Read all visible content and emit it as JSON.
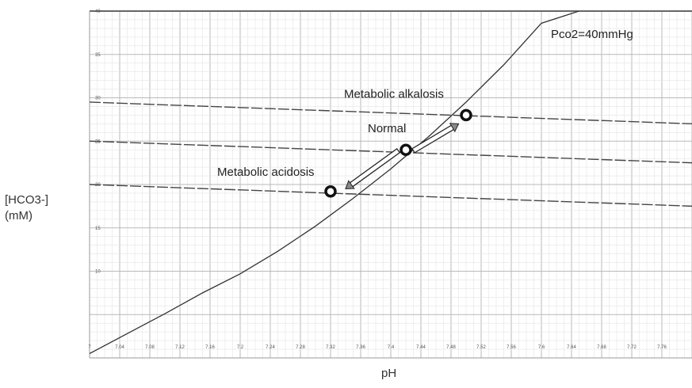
{
  "chart_data": {
    "type": "line",
    "title": "",
    "xlabel": "pH",
    "ylabel": "[HCO3-]",
    "ylabel_unit": "(mM)",
    "xlim": [
      7.0,
      7.8
    ],
    "ylim": [
      0,
      40
    ],
    "x_ticks": [
      7,
      7.04,
      7.08,
      7.12,
      7.16,
      7.2,
      7.24,
      7.28,
      7.32,
      7.36,
      7.4,
      7.44,
      7.48,
      7.52,
      7.56,
      7.6,
      7.64,
      7.68,
      7.72,
      7.76
    ],
    "x_tick_labels": [
      "7",
      "7.04",
      "7.08",
      "7.12",
      "7.16",
      "7.2",
      "7.24",
      "7.28",
      "7.32",
      "7.36",
      "7.4",
      "7.44",
      "7.48",
      "7.52",
      "7.56",
      "7.6",
      "7.64",
      "7.68",
      "7.72",
      "7.76"
    ],
    "y_ticks": [
      10,
      15,
      20,
      25,
      30,
      35,
      40
    ],
    "y_tick_labels": [
      "10",
      "15",
      "20",
      "25",
      "30",
      "35",
      "40"
    ],
    "grid": true,
    "curve": {
      "label": "Pco2=40mmHg",
      "x": [
        7.0,
        7.05,
        7.1,
        7.15,
        7.2,
        7.25,
        7.3,
        7.35,
        7.4,
        7.45,
        7.5,
        7.55,
        7.6,
        7.65
      ],
      "y": [
        0.5,
        2.8,
        5.1,
        7.5,
        9.7,
        12.3,
        15.2,
        18.4,
        21.8,
        25.5,
        29.5,
        33.8,
        38.6,
        40
      ]
    },
    "dashed_lines": [
      {
        "x": [
          7.0,
          7.8
        ],
        "y": [
          29.5,
          27.0
        ]
      },
      {
        "x": [
          7.0,
          7.8
        ],
        "y": [
          25.0,
          22.5
        ]
      },
      {
        "x": [
          7.0,
          7.8
        ],
        "y": [
          20.0,
          17.5
        ]
      }
    ],
    "points": [
      {
        "label": "Metabolic acidosis",
        "x": 7.32,
        "y": 19.2
      },
      {
        "label": "Normal",
        "x": 7.42,
        "y": 24.0
      },
      {
        "label": "Metabolic alkalosis",
        "x": 7.5,
        "y": 28.0
      }
    ],
    "arrows": [
      {
        "from": [
          7.43,
          23.9
        ],
        "to": [
          7.49,
          27.0
        ]
      },
      {
        "from": [
          7.41,
          23.9
        ],
        "to": [
          7.34,
          19.5
        ]
      }
    ]
  }
}
